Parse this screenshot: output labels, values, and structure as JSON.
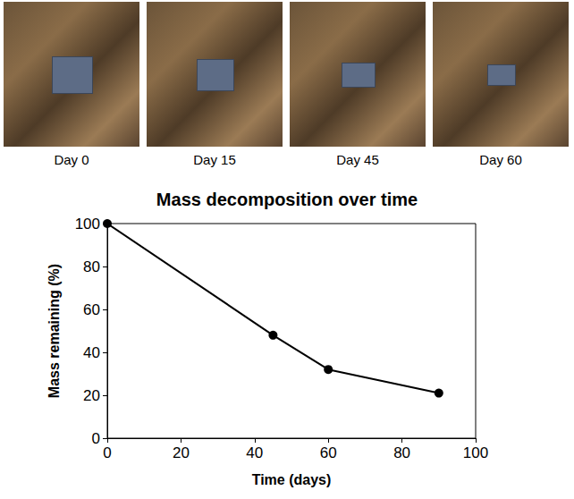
{
  "photo_captions": [
    "Day 0",
    "Day 15",
    "Day 45",
    "Day 60"
  ],
  "chart_data": {
    "type": "line",
    "title": "Mass decomposition over time",
    "x_label": "Time (days)",
    "y_label": "Mass remaining (%)",
    "series": [
      {
        "name": null,
        "color": "#000000",
        "marker": "circle",
        "line_style": "solid",
        "x": [
          0,
          45,
          60,
          90
        ],
        "values": [
          100,
          48,
          32,
          21
        ]
      }
    ],
    "xlim": [
      0,
      100
    ],
    "xticks": [
      0,
      20,
      40,
      60,
      80,
      100
    ],
    "ylim": [
      0,
      100
    ],
    "yticks": [
      0,
      20,
      40,
      60,
      80,
      100
    ],
    "grid": false
  }
}
